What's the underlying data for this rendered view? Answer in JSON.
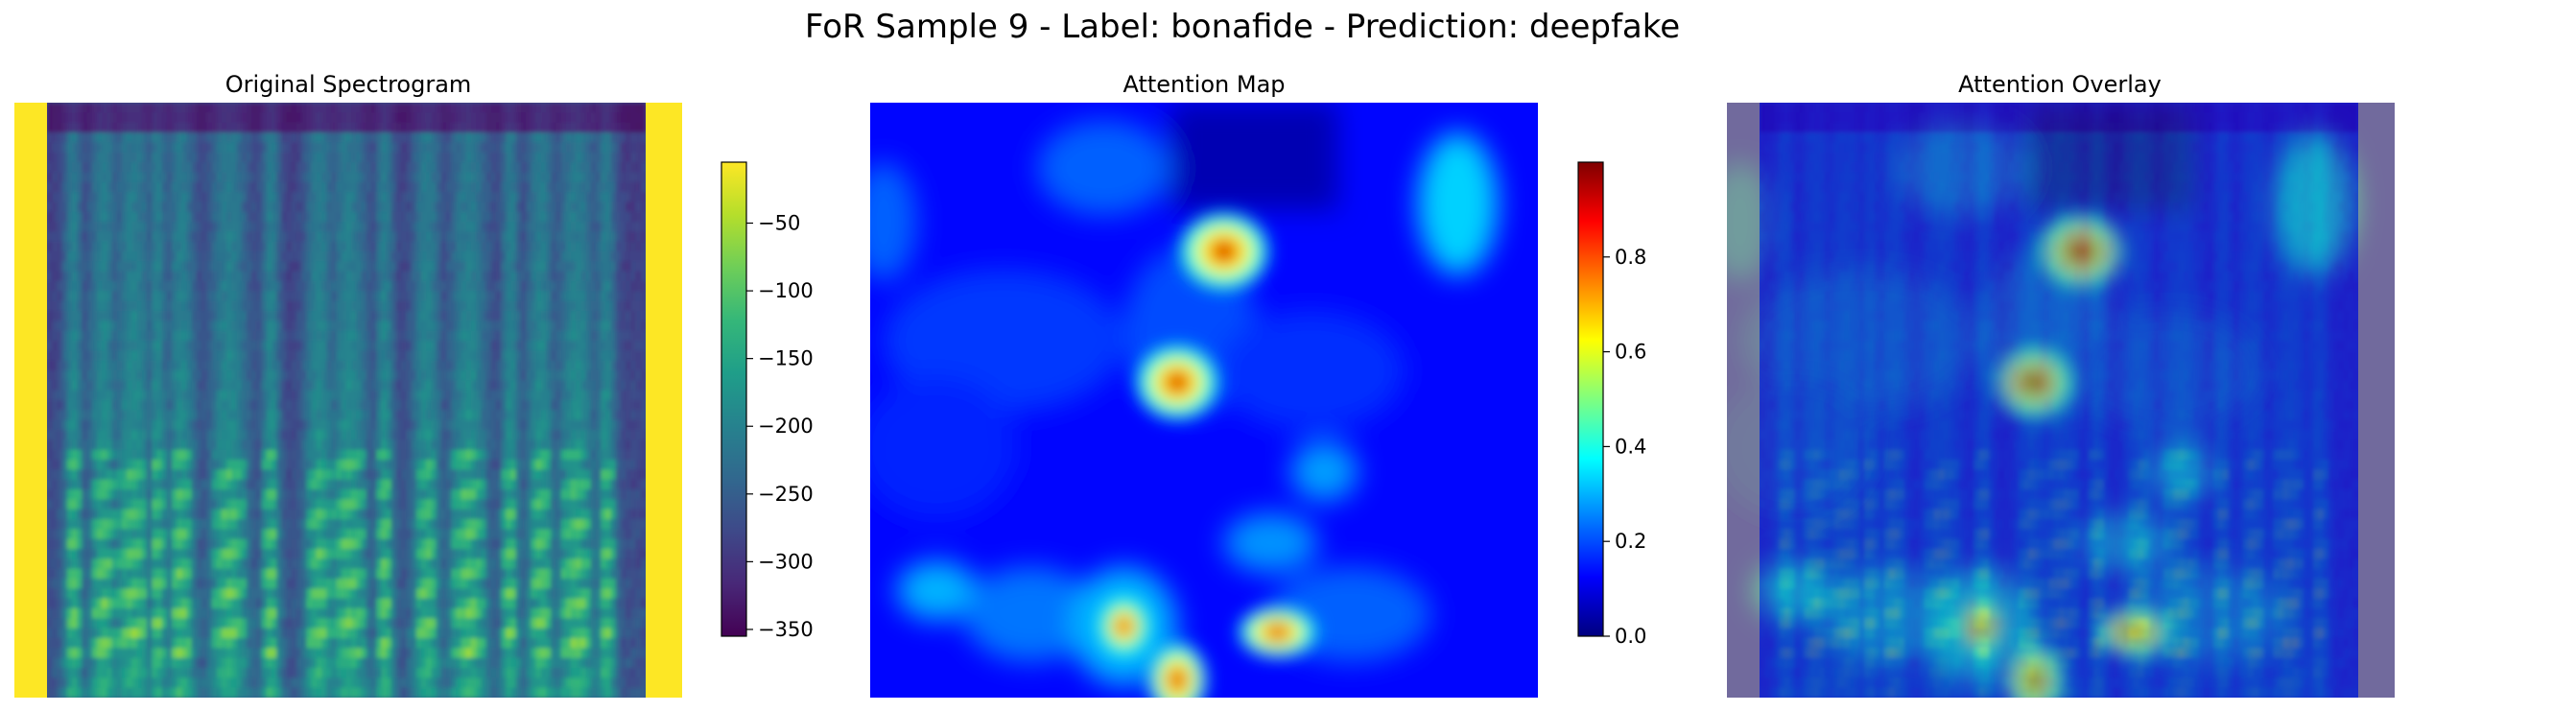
{
  "figure": {
    "suptitle": "FoR Sample 9 - Label: bonafide - Prediction: deepfake"
  },
  "chart_data": [
    {
      "type": "heatmap",
      "title": "Original Spectrogram",
      "colormap": "viridis",
      "axes_visible": false,
      "colorbar": {
        "range": [
          -355,
          -5
        ],
        "ticks": [
          -50,
          -100,
          -150,
          -200,
          -250,
          -300,
          -350
        ],
        "tick_labels": [
          "−50",
          "−100",
          "−150",
          "−200",
          "−250",
          "−300",
          "−350"
        ]
      }
    },
    {
      "type": "heatmap",
      "title": "Attention Map",
      "colormap": "jet",
      "axes_visible": false,
      "colorbar": {
        "range": [
          0,
          1
        ],
        "ticks": [
          0.0,
          0.2,
          0.4,
          0.6,
          0.8
        ],
        "tick_labels": [
          "0.0",
          "0.2",
          "0.4",
          "0.6",
          "0.8"
        ]
      }
    },
    {
      "type": "heatmap",
      "title": "Attention Overlay",
      "colormap": "jet over viridis",
      "axes_visible": false
    }
  ],
  "colors": {
    "viridis": [
      "#440154",
      "#482878",
      "#3e4989",
      "#31688e",
      "#26828e",
      "#1f9e89",
      "#35b779",
      "#6ece58",
      "#b5de2b",
      "#fde725"
    ],
    "jet": [
      "#00007f",
      "#0000ff",
      "#007fff",
      "#00ffff",
      "#7fff7f",
      "#ffff00",
      "#ff7f00",
      "#ff0000",
      "#7f0000"
    ]
  }
}
